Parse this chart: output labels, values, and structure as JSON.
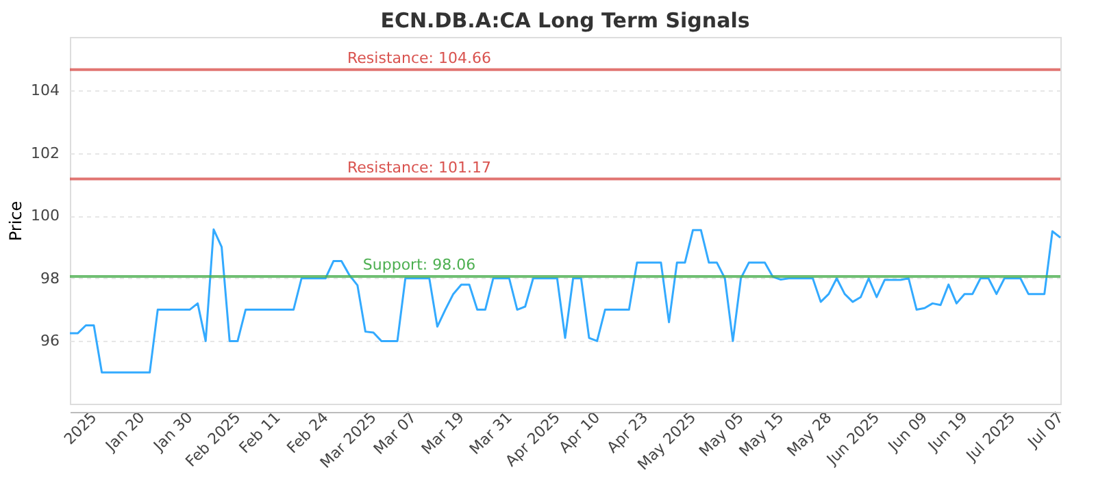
{
  "chart_data": {
    "type": "line",
    "title": "ECN.DB.A:CA Long Term Signals",
    "ylabel": "Price",
    "categories": [
      null,
      null,
      null,
      "2025",
      null,
      null,
      null,
      null,
      null,
      "Jan 20",
      null,
      null,
      null,
      null,
      null,
      "Jan 30",
      null,
      null,
      null,
      null,
      null,
      "Feb 2025",
      null,
      null,
      null,
      null,
      "Feb 11",
      null,
      null,
      null,
      null,
      null,
      "Feb 24",
      null,
      null,
      null,
      null,
      null,
      "Mar 2025",
      null,
      null,
      null,
      null,
      "Mar 07",
      null,
      null,
      null,
      null,
      null,
      "Mar 19",
      null,
      null,
      null,
      null,
      null,
      "Mar 31",
      null,
      null,
      null,
      null,
      null,
      "Apr 2025",
      null,
      null,
      null,
      null,
      "Apr 10",
      null,
      null,
      null,
      null,
      null,
      "Apr 23",
      null,
      null,
      null,
      null,
      null,
      "May 2025",
      null,
      null,
      null,
      null,
      null,
      "May 05",
      null,
      null,
      null,
      null,
      "May 15",
      null,
      null,
      null,
      null,
      null,
      "May 28",
      null,
      null,
      null,
      null,
      null,
      "Jun 2025",
      null,
      null,
      null,
      null,
      null,
      "Jun 09",
      null,
      null,
      null,
      null,
      "Jun 19",
      null,
      null,
      null,
      null,
      null,
      "Jul 2025",
      null,
      null,
      null,
      null,
      null,
      "Jul 07"
    ],
    "series": [
      {
        "color": "#33aaff",
        "values": [
          96.25,
          96.25,
          96.5,
          96.5,
          95.0,
          95.0,
          95.0,
          95.0,
          95.0,
          95.0,
          95.0,
          97.0,
          97.0,
          97.0,
          97.0,
          97.0,
          97.2,
          96.0,
          99.56,
          99.0,
          96.0,
          96.0,
          97.0,
          97.0,
          97.0,
          97.0,
          97.0,
          97.0,
          97.0,
          98.0,
          98.0,
          98.0,
          98.0,
          98.55,
          98.55,
          98.1,
          97.78,
          96.3,
          96.27,
          96.0,
          96.0,
          96.0,
          98.0,
          98.0,
          98.0,
          98.0,
          96.46,
          97.0,
          97.5,
          97.8,
          97.8,
          97.0,
          97.0,
          98.0,
          98.0,
          98.0,
          97.0,
          97.1,
          98.0,
          98.0,
          98.0,
          98.0,
          96.1,
          98.0,
          98.0,
          96.1,
          96.0,
          97.0,
          97.0,
          97.0,
          97.0,
          98.5,
          98.5,
          98.5,
          98.5,
          96.6,
          98.5,
          98.5,
          99.54,
          99.54,
          98.5,
          98.5,
          98.0,
          96.0,
          98.0,
          98.5,
          98.5,
          98.5,
          98.05,
          97.96,
          98.0,
          98.0,
          98.0,
          98.0,
          97.25,
          97.5,
          98.0,
          97.5,
          97.25,
          97.4,
          98.0,
          97.4,
          97.95,
          97.95,
          97.95,
          98.0,
          97.0,
          97.05,
          97.2,
          97.15,
          97.8,
          97.2,
          97.5,
          97.5,
          98.0,
          98.0,
          97.5,
          98.0,
          98.0,
          98.0,
          97.5,
          97.5,
          97.5,
          99.5,
          99.3
        ]
      }
    ],
    "ylim": [
      94,
      105.7
    ],
    "yticks": [
      96,
      98,
      100,
      102,
      104
    ],
    "grid": "y",
    "marker": "none",
    "line_style": "solid",
    "ref_lines": [
      {
        "axis": "y",
        "value": 104.66,
        "label": "Resistance: 104.66",
        "color": "#d9534f"
      },
      {
        "axis": "y",
        "value": 101.17,
        "label": "Resistance: 101.17",
        "color": "#d9534f"
      },
      {
        "axis": "y",
        "value": 98.06,
        "label": "Support: 98.06",
        "color": "#4caf50"
      }
    ]
  }
}
